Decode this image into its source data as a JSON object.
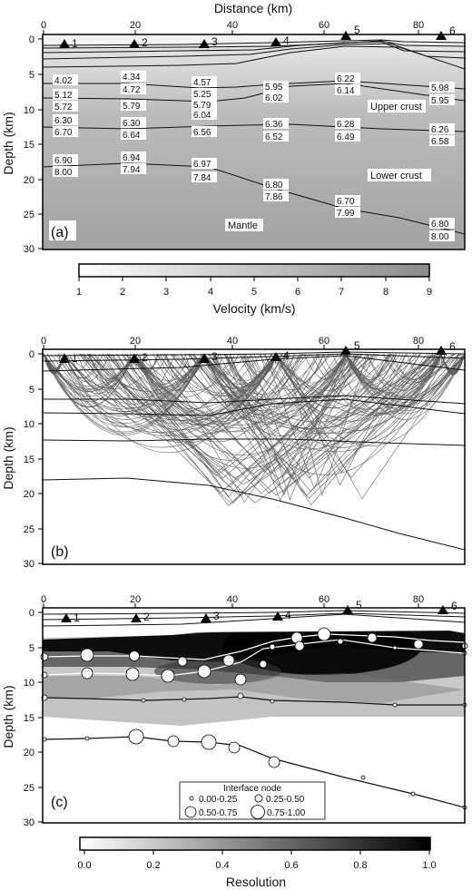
{
  "figure": {
    "x_axis_title": "Distance (km)",
    "depth_label": "Depth (km)",
    "x_ticks": [
      "0",
      "20",
      "40",
      "60",
      "80"
    ],
    "y_ticks": [
      "0",
      "5",
      "10",
      "15",
      "20",
      "25",
      "30"
    ],
    "stations": [
      "1",
      "2",
      "3",
      "4",
      "5",
      "6"
    ],
    "panel_a": {
      "tag": "(a)",
      "velocity_labels": [
        "4.02",
        "5.12",
        "5.72",
        "6.30",
        "6.70",
        "6.90",
        "8.00",
        "4.34",
        "4.72",
        "5.79",
        "6.30",
        "6.64",
        "6.94",
        "7.94",
        "4.57",
        "5.25",
        "5.79",
        "6.04",
        "6.56",
        "6.97",
        "7.84",
        "5.95",
        "6.02",
        "6.36",
        "6.52",
        "6.80",
        "7.86",
        "6.22",
        "6.14",
        "6.28",
        "6.49",
        "6.70",
        "7.99",
        "5.98",
        "5.95",
        "6.26",
        "6.58",
        "6.80",
        "8.00"
      ],
      "region_labels": [
        "Upper crust",
        "Lower crust",
        "Mantle"
      ]
    },
    "velocity_scale": {
      "title": "Velocity (km/s)",
      "ticks": [
        "1",
        "2",
        "3",
        "4",
        "5",
        "6",
        "7",
        "8",
        "9"
      ]
    },
    "panel_b": {
      "tag": "(b)"
    },
    "panel_c": {
      "tag": "(c)",
      "legend_title": "Interface node",
      "legend_items": [
        "0.00-0.25",
        "0.25-0.50",
        "0.50-0.75",
        "0.75-1.00"
      ]
    },
    "resolution_scale": {
      "title": "Resolution",
      "ticks": [
        "0.0",
        "0.2",
        "0.4",
        "0.6",
        "0.8",
        "1.0"
      ]
    }
  },
  "colors": {
    "lower_layer_gray": "#a8a8a8",
    "frame": "#000000",
    "ray_gray": "#3a3a3a"
  }
}
